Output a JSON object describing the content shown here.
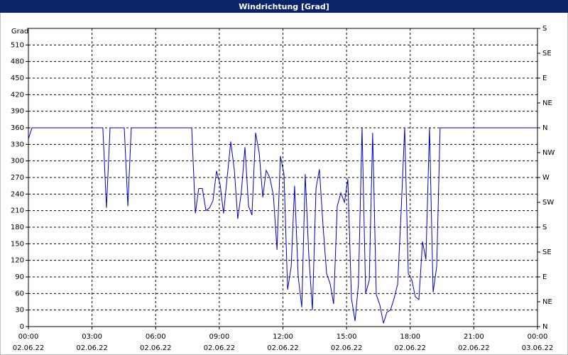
{
  "chart_data": {
    "type": "line",
    "title": "Windrichtung [Grad]",
    "y_label": "Grad",
    "xlim": [
      0,
      24
    ],
    "ylim": [
      0,
      540
    ],
    "y2lim": [
      0,
      540
    ],
    "grid": true,
    "xticks": [
      {
        "value": 0,
        "label": "00:00",
        "date": "02.06.22"
      },
      {
        "value": 3,
        "label": "03:00",
        "date": "02.06.22"
      },
      {
        "value": 6,
        "label": "06:00",
        "date": "02.06.22"
      },
      {
        "value": 9,
        "label": "09:00",
        "date": "02.06.22"
      },
      {
        "value": 12,
        "label": "12:00",
        "date": "02.06.22"
      },
      {
        "value": 15,
        "label": "15:00",
        "date": "02.06.22"
      },
      {
        "value": 18,
        "label": "18:00",
        "date": "02.06.22"
      },
      {
        "value": 21,
        "label": "21:00",
        "date": "02.06.22"
      },
      {
        "value": 24,
        "label": "00:00",
        "date": "03.06.22"
      }
    ],
    "yticks": [
      0,
      30,
      60,
      90,
      120,
      150,
      180,
      210,
      240,
      270,
      300,
      330,
      360,
      390,
      420,
      450,
      480,
      510
    ],
    "y2ticks": [
      {
        "value": 0,
        "label": "N"
      },
      {
        "value": 45,
        "label": "NE"
      },
      {
        "value": 90,
        "label": "E"
      },
      {
        "value": 135,
        "label": "SE"
      },
      {
        "value": 180,
        "label": "S"
      },
      {
        "value": 225,
        "label": "SW"
      },
      {
        "value": 270,
        "label": "W"
      },
      {
        "value": 315,
        "label": "NW"
      },
      {
        "value": 360,
        "label": "N"
      },
      {
        "value": 405,
        "label": "NE"
      },
      {
        "value": 450,
        "label": "E"
      },
      {
        "value": 495,
        "label": "SE"
      },
      {
        "value": 540,
        "label": "S"
      }
    ],
    "x": [
      0,
      0.17,
      3.51,
      3.68,
      3.85,
      4.52,
      4.69,
      4.85,
      7.7,
      7.87,
      8.03,
      8.2,
      8.37,
      8.54,
      8.7,
      8.87,
      9.04,
      9.2,
      9.37,
      9.54,
      9.71,
      9.87,
      10.04,
      10.21,
      10.38,
      10.54,
      10.71,
      10.88,
      11.05,
      11.21,
      11.38,
      11.55,
      11.72,
      11.88,
      12.05,
      12.22,
      12.39,
      12.55,
      12.72,
      12.89,
      13.05,
      13.22,
      13.39,
      13.56,
      13.72,
      13.89,
      14.06,
      14.23,
      14.39,
      14.56,
      14.73,
      14.9,
      15.06,
      15.23,
      15.4,
      15.56,
      15.73,
      15.9,
      16.07,
      16.23,
      16.4,
      16.57,
      16.74,
      16.9,
      17.07,
      17.24,
      17.41,
      17.57,
      17.74,
      17.91,
      18.08,
      18.24,
      18.41,
      18.58,
      18.74,
      18.91,
      19.08,
      19.25,
      19.41,
      24
    ],
    "series": [
      {
        "name": "Windrichtung",
        "color": "#0000c0",
        "values": [
          340,
          360,
          360,
          215,
          360,
          360,
          218,
          360,
          360,
          205,
          250,
          250,
          210,
          215,
          228,
          282,
          257,
          205,
          270,
          335,
          283,
          195,
          244,
          325,
          218,
          202,
          351,
          315,
          234,
          283,
          270,
          238,
          139,
          309,
          276,
          67,
          109,
          255,
          90,
          35,
          276,
          129,
          30,
          251,
          285,
          183,
          96,
          77,
          41,
          218,
          242,
          225,
          267,
          51,
          10,
          77,
          360,
          60,
          84,
          351,
          58,
          39,
          6,
          26,
          30,
          51,
          77,
          206,
          360,
          96,
          84,
          54,
          49,
          154,
          122,
          360,
          62,
          109,
          360,
          360
        ]
      }
    ]
  }
}
